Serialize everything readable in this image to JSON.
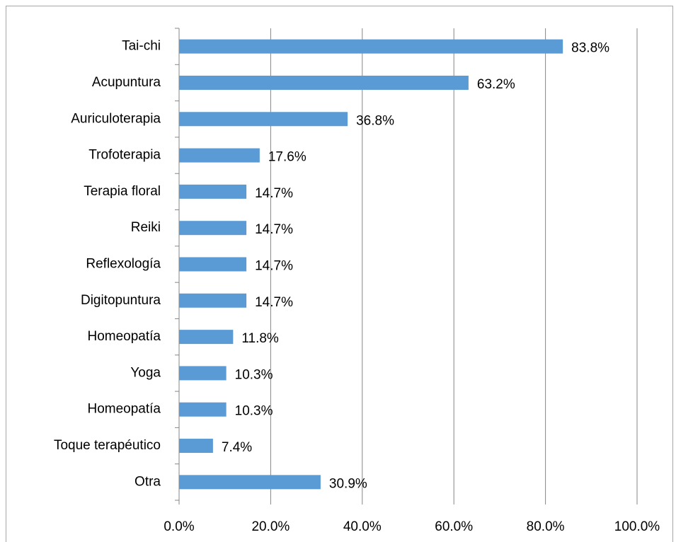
{
  "chart_data": {
    "type": "bar",
    "orientation": "horizontal",
    "categories": [
      "Tai-chi",
      "Acupuntura",
      "Auriculoterapia",
      "Trofoterapia",
      "Terapia floral",
      "Reiki",
      "Reflexología",
      "Digitopuntura",
      "Homeopatía",
      "Yoga",
      "Homeopatía",
      "Toque terapéutico",
      "Otra"
    ],
    "values": [
      83.8,
      63.2,
      36.8,
      17.6,
      14.7,
      14.7,
      14.7,
      14.7,
      11.8,
      10.3,
      10.3,
      7.4,
      30.9
    ],
    "value_labels": [
      "83.8%",
      "63.2%",
      "36.8%",
      "17.6%",
      "14.7%",
      "14.7%",
      "14.7%",
      "14.7%",
      "11.8%",
      "10.3%",
      "10.3%",
      "7.4%",
      "30.9%"
    ],
    "color": "#5b9bd5",
    "xlim": [
      0,
      100
    ],
    "xticks": [
      {
        "value": 0,
        "label": "0.0%"
      },
      {
        "value": 20,
        "label": "20.0%"
      },
      {
        "value": 40,
        "label": "40.0%"
      },
      {
        "value": 60,
        "label": "60.0%"
      },
      {
        "value": 80,
        "label": "80.0%"
      },
      {
        "value": 100,
        "label": "100.0%"
      }
    ],
    "grid": true
  }
}
